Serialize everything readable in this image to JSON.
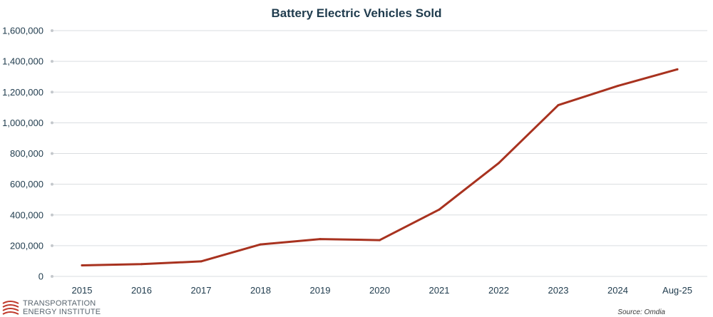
{
  "chart_data": {
    "type": "line",
    "title": "Battery Electric Vehicles Sold",
    "xlabel": "",
    "ylabel": "",
    "categories": [
      "2015",
      "2016",
      "2017",
      "2018",
      "2019",
      "2020",
      "2021",
      "2022",
      "2023",
      "2024",
      "Aug-25"
    ],
    "series": [
      {
        "values": [
          72000,
          80000,
          98000,
          208000,
          243000,
          236000,
          435000,
          738000,
          1115000,
          1240000,
          1348000
        ]
      }
    ],
    "ylim": [
      0,
      1600000
    ],
    "yticks": [
      "0",
      "200,000",
      "400,000",
      "600,000",
      "800,000",
      "1,000,000",
      "1,200,000",
      "1,400,000",
      "1,600,000"
    ],
    "grid": true,
    "legend": "none",
    "colors": {
      "series": "#a8321f",
      "text": "#1f3b4d",
      "grid": "#dadde0"
    }
  },
  "source": "Source:  Omdia",
  "logo": {
    "line1": "TRANSPORTATION",
    "line2": "ENERGY INSTITUTE",
    "color": "#c0392b"
  }
}
